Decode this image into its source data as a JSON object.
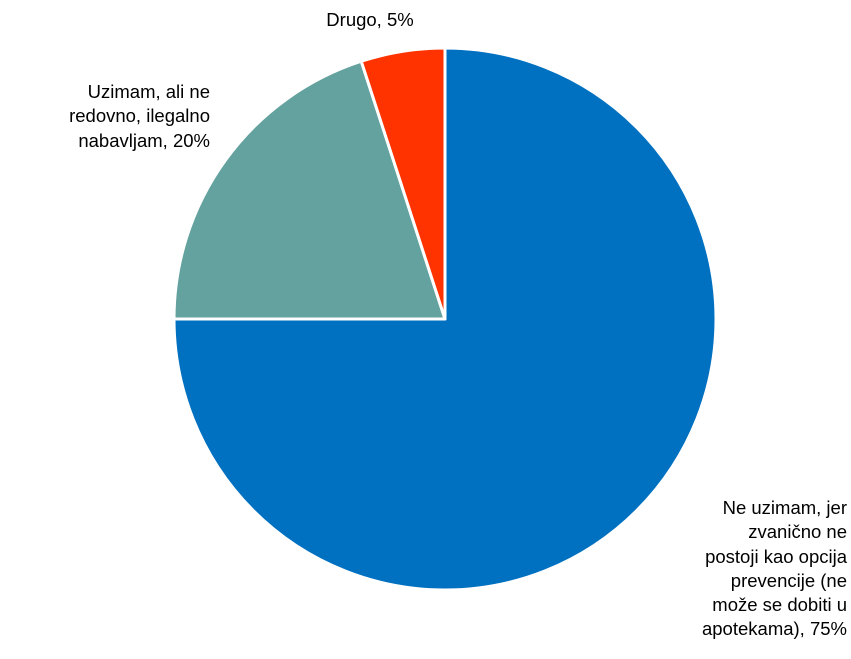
{
  "chart_data": {
    "type": "pie",
    "start_angle_deg": 0,
    "direction": "clockwise",
    "slices": [
      {
        "label_lines": [
          "Ne uzimam, jer",
          "zvanično ne",
          "postoji kao opcija",
          "prevencije (ne",
          "može se dobiti u",
          "apotekama), 75%"
        ],
        "value": 75,
        "color": "#0070C0"
      },
      {
        "label_lines": [
          "Uzimam, ali ne",
          "redovno, ilegalno",
          "nabavljam, 20%"
        ],
        "value": 20,
        "color": "#63A29E"
      },
      {
        "label_lines": [
          "Drugo, 5%"
        ],
        "value": 5,
        "color": "#FF3300"
      }
    ],
    "slice_border_color": "#ffffff"
  }
}
